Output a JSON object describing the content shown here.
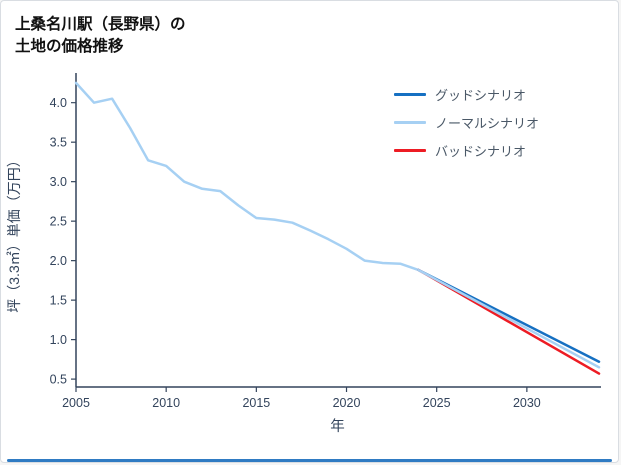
{
  "page": {
    "title_line1": "上桑名川駅（長野県）の",
    "title_line2": "土地の価格推移"
  },
  "accent_bar_color": "#2f7bc3",
  "chart_data": {
    "type": "line",
    "title": "上桑名川駅（長野県）の土地の価格推移",
    "xlabel": "年",
    "ylabel": "坪（3.3㎡）単価（万円）",
    "xlim": [
      2005,
      2034
    ],
    "ylim": [
      0.4,
      4.3
    ],
    "xticks": [
      2005,
      2010,
      2015,
      2020,
      2025,
      2030
    ],
    "yticks": [
      0.5,
      1.0,
      1.5,
      2.0,
      2.5,
      3.0,
      3.5,
      4.0
    ],
    "grid": false,
    "legend_position": "top-right",
    "axis_color": "#33445c",
    "history": {
      "color": "#a6d0f3",
      "x": [
        2005,
        2006,
        2007,
        2008,
        2009,
        2010,
        2011,
        2012,
        2013,
        2014,
        2015,
        2016,
        2017,
        2018,
        2019,
        2020,
        2021,
        2022,
        2023,
        2024
      ],
      "y": [
        4.25,
        4.0,
        4.05,
        3.68,
        3.27,
        3.2,
        3.0,
        2.91,
        2.88,
        2.7,
        2.54,
        2.52,
        2.48,
        2.38,
        2.27,
        2.15,
        2.0,
        1.97,
        1.96,
        1.88
      ]
    },
    "series": [
      {
        "name": "グッドシナリオ",
        "color": "#1670c2",
        "x": [
          2024,
          2034
        ],
        "y": [
          1.88,
          0.72
        ]
      },
      {
        "name": "ノーマルシナリオ",
        "color": "#a6d0f3",
        "x": [
          2024,
          2034
        ],
        "y": [
          1.88,
          0.65
        ]
      },
      {
        "name": "バッドシナリオ",
        "color": "#ed1c24",
        "x": [
          2024,
          2034
        ],
        "y": [
          1.88,
          0.57
        ]
      }
    ]
  }
}
